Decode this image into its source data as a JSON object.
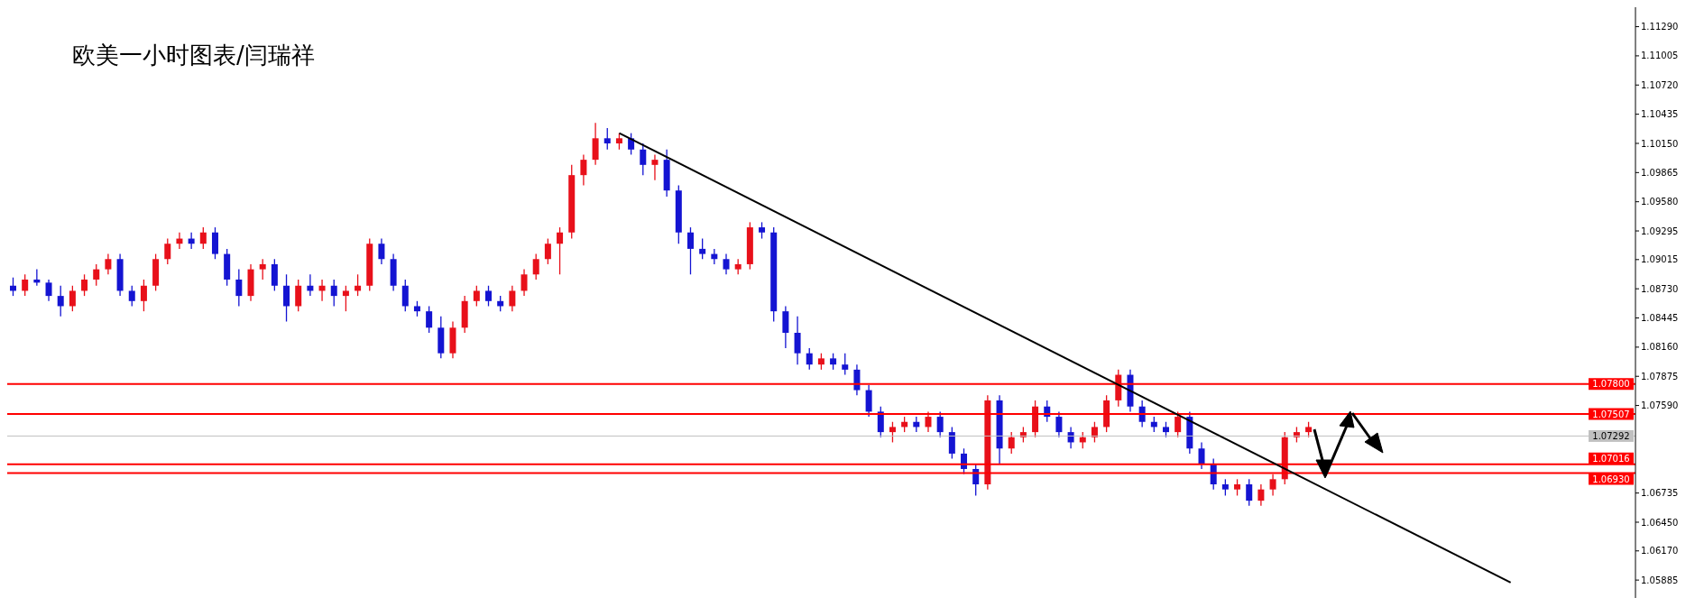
{
  "chart_data": {
    "type": "candlestick",
    "title": "欧美一小时图表/闫瑞祥",
    "categories": [
      null,
      null,
      null,
      null,
      null,
      null,
      null,
      null,
      null,
      null,
      null,
      null,
      null,
      null,
      null,
      null,
      null,
      null,
      null,
      null,
      null,
      null,
      null,
      null,
      null,
      null,
      null,
      null,
      null,
      null,
      null,
      null,
      null,
      null,
      null,
      null,
      null,
      null,
      null,
      null,
      null,
      null,
      null,
      null,
      null,
      null,
      null,
      null,
      null,
      null,
      null,
      null,
      null,
      null,
      null,
      null,
      null,
      null,
      null,
      null,
      null,
      null,
      null,
      null,
      null,
      null,
      null,
      null,
      null,
      null,
      null,
      null,
      null,
      null,
      null,
      null,
      null,
      null,
      null,
      null,
      null,
      null,
      null,
      null,
      null,
      null,
      null,
      null,
      null,
      null,
      null,
      null,
      null,
      null,
      null,
      null,
      null,
      null,
      null,
      null,
      null,
      null,
      null,
      null,
      null,
      null,
      null,
      null,
      null,
      null,
      null,
      null,
      null,
      null,
      null,
      null,
      null,
      null,
      null,
      null,
      null,
      null,
      null,
      null,
      null,
      null,
      null,
      null,
      null,
      null,
      null,
      null,
      null,
      null,
      null,
      null,
      null
    ],
    "ohlc": [
      [
        1.0876,
        1.0884,
        1.0866,
        1.0871
      ],
      [
        1.0871,
        1.0887,
        1.0866,
        1.0882
      ],
      [
        1.0882,
        1.0892,
        1.0876,
        1.0879
      ],
      [
        1.0879,
        1.0882,
        1.0861,
        1.0866
      ],
      [
        1.0866,
        1.0876,
        1.0846,
        1.0856
      ],
      [
        1.0856,
        1.0876,
        1.0851,
        1.0871
      ],
      [
        1.0871,
        1.0887,
        1.0866,
        1.0882
      ],
      [
        1.0882,
        1.0897,
        1.0876,
        1.0892
      ],
      [
        1.0892,
        1.0907,
        1.0887,
        1.0902
      ],
      [
        1.0902,
        1.0907,
        1.0866,
        1.0871
      ],
      [
        1.0871,
        1.0876,
        1.0856,
        1.0861
      ],
      [
        1.0861,
        1.0882,
        1.0851,
        1.0876
      ],
      [
        1.0876,
        1.0907,
        1.0871,
        1.0902
      ],
      [
        1.0902,
        1.0922,
        1.0897,
        1.0917
      ],
      [
        1.0917,
        1.0928,
        1.0912,
        1.0922
      ],
      [
        1.0922,
        1.0928,
        1.0912,
        1.0917
      ],
      [
        1.0917,
        1.0933,
        1.0912,
        1.0928
      ],
      [
        1.0928,
        1.0933,
        1.0902,
        1.0907
      ],
      [
        1.0907,
        1.0912,
        1.0876,
        1.0882
      ],
      [
        1.0882,
        1.0892,
        1.0856,
        1.0866
      ],
      [
        1.0866,
        1.0897,
        1.0861,
        1.0892
      ],
      [
        1.0892,
        1.0902,
        1.0882,
        1.0897
      ],
      [
        1.0897,
        1.0902,
        1.0871,
        1.0876
      ],
      [
        1.0876,
        1.0887,
        1.0841,
        1.0856
      ],
      [
        1.0856,
        1.0882,
        1.0851,
        1.0876
      ],
      [
        1.0876,
        1.0887,
        1.0866,
        1.0871
      ],
      [
        1.0871,
        1.0882,
        1.0861,
        1.0876
      ],
      [
        1.0876,
        1.0882,
        1.0856,
        1.0866
      ],
      [
        1.0866,
        1.0876,
        1.0851,
        1.0871
      ],
      [
        1.0871,
        1.0887,
        1.0866,
        1.0876
      ],
      [
        1.0876,
        1.0922,
        1.0871,
        1.0917
      ],
      [
        1.0917,
        1.0922,
        1.0897,
        1.0902
      ],
      [
        1.0902,
        1.0907,
        1.0871,
        1.0876
      ],
      [
        1.0876,
        1.0882,
        1.0851,
        1.0856
      ],
      [
        1.0856,
        1.0861,
        1.0846,
        1.0851
      ],
      [
        1.0851,
        1.0856,
        1.083,
        1.0835
      ],
      [
        1.0835,
        1.0846,
        1.0805,
        1.081
      ],
      [
        1.081,
        1.0841,
        1.0805,
        1.0835
      ],
      [
        1.0835,
        1.0866,
        1.083,
        1.0861
      ],
      [
        1.0861,
        1.0876,
        1.0856,
        1.0871
      ],
      [
        1.0871,
        1.0876,
        1.0856,
        1.0861
      ],
      [
        1.0861,
        1.0866,
        1.0851,
        1.0856
      ],
      [
        1.0856,
        1.0876,
        1.0851,
        1.0871
      ],
      [
        1.0871,
        1.0892,
        1.0866,
        1.0887
      ],
      [
        1.0887,
        1.0907,
        1.0882,
        1.0902
      ],
      [
        1.0902,
        1.0922,
        1.0897,
        1.0917
      ],
      [
        1.0917,
        1.0933,
        1.0887,
        1.0928
      ],
      [
        1.0928,
        1.0994,
        1.0922,
        1.0984
      ],
      [
        1.0984,
        1.1004,
        1.0974,
        1.0999
      ],
      [
        1.0999,
        1.1035,
        1.0994,
        1.102
      ],
      [
        1.102,
        1.103,
        1.1009,
        1.1015
      ],
      [
        1.1015,
        1.1025,
        1.1009,
        1.102
      ],
      [
        1.102,
        1.1025,
        1.1004,
        1.1009
      ],
      [
        1.1009,
        1.1015,
        1.0984,
        1.0994
      ],
      [
        1.0994,
        1.1004,
        1.0979,
        1.0999
      ],
      [
        1.0999,
        1.1009,
        1.0963,
        1.0969
      ],
      [
        1.0969,
        1.0974,
        1.0917,
        1.0928
      ],
      [
        1.0928,
        1.0933,
        1.0887,
        1.0912
      ],
      [
        1.0912,
        1.0922,
        1.0902,
        1.0907
      ],
      [
        1.0907,
        1.0912,
        1.0897,
        1.0902
      ],
      [
        1.0902,
        1.0907,
        1.0887,
        1.0892
      ],
      [
        1.0892,
        1.0902,
        1.0887,
        1.0897
      ],
      [
        1.0897,
        1.0938,
        1.0892,
        1.0933
      ],
      [
        1.0933,
        1.0938,
        1.0922,
        1.0928
      ],
      [
        1.0928,
        1.0933,
        1.0841,
        1.0851
      ],
      [
        1.0851,
        1.0856,
        1.0815,
        1.083
      ],
      [
        1.083,
        1.0846,
        1.0799,
        1.081
      ],
      [
        1.081,
        1.0815,
        1.0794,
        1.0799
      ],
      [
        1.0799,
        1.081,
        1.0794,
        1.0805
      ],
      [
        1.0805,
        1.081,
        1.0794,
        1.0799
      ],
      [
        1.0799,
        1.081,
        1.0789,
        1.0794
      ],
      [
        1.0794,
        1.0799,
        1.0769,
        1.0774
      ],
      [
        1.0774,
        1.0779,
        1.0748,
        1.0753
      ],
      [
        1.0753,
        1.0758,
        1.0728,
        1.0733
      ],
      [
        1.0733,
        1.0743,
        1.0723,
        1.0738
      ],
      [
        1.0738,
        1.0748,
        1.0733,
        1.0743
      ],
      [
        1.0743,
        1.0748,
        1.0733,
        1.0738
      ],
      [
        1.0738,
        1.0753,
        1.0733,
        1.0748
      ],
      [
        1.0748,
        1.0753,
        1.0728,
        1.0733
      ],
      [
        1.0733,
        1.0738,
        1.0707,
        1.0712
      ],
      [
        1.0712,
        1.0717,
        1.0692,
        1.0697
      ],
      [
        1.0697,
        1.0702,
        1.0671,
        1.0682
      ],
      [
        1.0682,
        1.0769,
        1.0677,
        1.0764
      ],
      [
        1.0764,
        1.0769,
        1.0702,
        1.0717
      ],
      [
        1.0717,
        1.0733,
        1.0712,
        1.0728
      ],
      [
        1.0728,
        1.0738,
        1.0723,
        1.0733
      ],
      [
        1.0733,
        1.0764,
        1.0728,
        1.0758
      ],
      [
        1.0758,
        1.0764,
        1.0743,
        1.0748
      ],
      [
        1.0748,
        1.0753,
        1.0728,
        1.0733
      ],
      [
        1.0733,
        1.0738,
        1.0717,
        1.0723
      ],
      [
        1.0723,
        1.0733,
        1.0717,
        1.0728
      ],
      [
        1.0728,
        1.0743,
        1.0723,
        1.0738
      ],
      [
        1.0738,
        1.0769,
        1.0733,
        1.0764
      ],
      [
        1.0764,
        1.0794,
        1.0758,
        1.0789
      ],
      [
        1.0789,
        1.0794,
        1.0753,
        1.0758
      ],
      [
        1.0758,
        1.0764,
        1.0738,
        1.0743
      ],
      [
        1.0743,
        1.0748,
        1.0733,
        1.0738
      ],
      [
        1.0738,
        1.0743,
        1.0728,
        1.0733
      ],
      [
        1.0733,
        1.0753,
        1.0728,
        1.0748
      ],
      [
        1.0748,
        1.0753,
        1.0712,
        1.0717
      ],
      [
        1.0717,
        1.0723,
        1.0697,
        1.0702
      ],
      [
        1.0702,
        1.0707,
        1.0677,
        1.0682
      ],
      [
        1.0682,
        1.0687,
        1.0671,
        1.0677
      ],
      [
        1.0677,
        1.0687,
        1.0671,
        1.0682
      ],
      [
        1.0682,
        1.0687,
        1.0661,
        1.0666
      ],
      [
        1.0666,
        1.0682,
        1.0661,
        1.0677
      ],
      [
        1.0677,
        1.0692,
        1.0671,
        1.0687
      ],
      [
        1.0687,
        1.0733,
        1.0682,
        1.0728
      ],
      [
        1.0728,
        1.0738,
        1.0723,
        1.0733
      ],
      [
        1.0733,
        1.0743,
        1.0728,
        1.0738
      ],
      null,
      null,
      null,
      null,
      null,
      null,
      null,
      null,
      null,
      null,
      null,
      null,
      null,
      null,
      null,
      null,
      null,
      null,
      null,
      null,
      null,
      null,
      null,
      null,
      null,
      null,
      null
    ],
    "colors": [
      "#1414d2",
      "#e8101a",
      "#1414d2",
      "#1414d2",
      "#1414d2",
      "#e8101a",
      "#e8101a",
      "#e8101a",
      "#e8101a",
      "#1414d2",
      "#1414d2",
      "#e8101a",
      "#e8101a",
      "#e8101a",
      "#e8101a",
      "#1414d2",
      "#e8101a",
      "#1414d2",
      "#1414d2",
      "#1414d2",
      "#e8101a",
      "#e8101a",
      "#1414d2",
      "#1414d2",
      "#e8101a",
      "#1414d2",
      "#e8101a",
      "#1414d2",
      "#e8101a",
      "#e8101a",
      "#e8101a",
      "#1414d2",
      "#1414d2",
      "#1414d2",
      "#1414d2",
      "#1414d2",
      "#1414d2",
      "#e8101a",
      "#e8101a",
      "#e8101a",
      "#1414d2",
      "#1414d2",
      "#e8101a",
      "#e8101a",
      "#e8101a",
      "#e8101a",
      "#e8101a",
      "#e8101a",
      "#e8101a",
      "#e8101a",
      "#1414d2",
      "#e8101a",
      "#1414d2",
      "#1414d2",
      "#e8101a",
      "#1414d2",
      "#1414d2",
      "#1414d2",
      "#1414d2",
      "#1414d2",
      "#1414d2",
      "#e8101a",
      "#e8101a",
      "#1414d2",
      "#1414d2",
      "#1414d2",
      "#1414d2",
      "#1414d2",
      "#e8101a",
      "#1414d2",
      "#1414d2",
      "#1414d2",
      "#1414d2",
      "#1414d2",
      "#e8101a",
      "#e8101a",
      "#1414d2",
      "#e8101a",
      "#1414d2",
      "#1414d2",
      "#1414d2",
      "#1414d2",
      "#e8101a",
      "#1414d2",
      "#e8101a",
      "#e8101a",
      "#e8101a",
      "#1414d2",
      "#1414d2",
      "#1414d2",
      "#e8101a",
      "#e8101a",
      "#e8101a",
      "#e8101a",
      "#1414d2",
      "#1414d2",
      "#1414d2",
      "#1414d2",
      "#e8101a",
      "#1414d2",
      "#1414d2",
      "#1414d2",
      "#1414d2",
      "#e8101a",
      "#1414d2",
      "#e8101a",
      "#e8101a",
      "#e8101a",
      "#e8101a",
      "#e8101a",
      null,
      null,
      null,
      null,
      null,
      null,
      null,
      null,
      null,
      null,
      null,
      null,
      null,
      null,
      null,
      null,
      null,
      null,
      null,
      null,
      null,
      null,
      null,
      null,
      null,
      null,
      null
    ],
    "series": [
      {
        "type": "line",
        "values": [
          null,
          null,
          null,
          null,
          null,
          null,
          null,
          null,
          null,
          null,
          null,
          null,
          null,
          null,
          null,
          null,
          null,
          null,
          null,
          null,
          null,
          null,
          null,
          null,
          null,
          null,
          null,
          null,
          null,
          null,
          null,
          null,
          null,
          null,
          null,
          null,
          null,
          null,
          null,
          null,
          null,
          null,
          null,
          null,
          null,
          null,
          null,
          null,
          null,
          null,
          null,
          1.1025,
          null,
          null,
          null,
          null,
          null,
          null,
          null,
          null,
          null,
          null,
          null,
          null,
          null,
          null,
          null,
          null,
          null,
          null,
          null,
          null,
          null,
          null,
          null,
          null,
          null,
          null,
          null,
          null,
          null,
          null,
          null,
          null,
          null,
          null,
          null,
          null,
          null,
          null,
          null,
          null,
          null,
          null,
          null,
          null,
          null,
          null,
          null,
          null,
          null,
          null,
          null,
          null,
          null,
          null,
          null,
          null,
          null,
          null,
          null,
          null,
          null,
          null,
          null,
          null,
          null,
          null,
          null,
          null,
          null,
          null,
          null,
          null,
          null,
          null,
          1.0586,
          null,
          null,
          null,
          null,
          null,
          null,
          null,
          null,
          null,
          null
        ],
        "color": "#000000"
      }
    ],
    "ylim": [
      1.0571,
      1.1148
    ],
    "yticks": [
      {
        "value": 1.1129,
        "label": "1.11290"
      },
      {
        "value": 1.11005,
        "label": "1.11005"
      },
      {
        "value": 1.1072,
        "label": "1.10720"
      },
      {
        "value": 1.10435,
        "label": "1.10435"
      },
      {
        "value": 1.1015,
        "label": "1.10150"
      },
      {
        "value": 1.09865,
        "label": "1.09865"
      },
      {
        "value": 1.0958,
        "label": "1.09580"
      },
      {
        "value": 1.09295,
        "label": "1.09295"
      },
      {
        "value": 1.09015,
        "label": "1.09015"
      },
      {
        "value": 1.0873,
        "label": "1.08730"
      },
      {
        "value": 1.08445,
        "label": "1.08445"
      },
      {
        "value": 1.0816,
        "label": "1.08160"
      },
      {
        "value": 1.07875,
        "label": "1.07875"
      },
      {
        "value": 1.0759,
        "label": "1.07590"
      },
      {
        "value": 1.06735,
        "label": "1.06735"
      },
      {
        "value": 1.0645,
        "label": "1.06450"
      },
      {
        "value": 1.0617,
        "label": "1.06170"
      },
      {
        "value": 1.05885,
        "label": "1.05885"
      }
    ],
    "ref_lines": [
      {
        "axis": "y",
        "value": 1.078,
        "label": "1.07800",
        "color": "#ff0000"
      },
      {
        "axis": "y",
        "value": 1.07507,
        "label": "1.07507",
        "color": "#ff0000"
      },
      {
        "axis": "y",
        "value": 1.07292,
        "label": "1.07292",
        "color": "#c0c0c0"
      },
      {
        "axis": "y",
        "value": 1.07016,
        "label": "1.07016",
        "color": "#ff0000"
      },
      {
        "axis": "y",
        "value": 1.0693,
        "label": "1.06930",
        "color": "#ff0000"
      }
    ],
    "tick_labels": "y",
    "grid": false
  }
}
